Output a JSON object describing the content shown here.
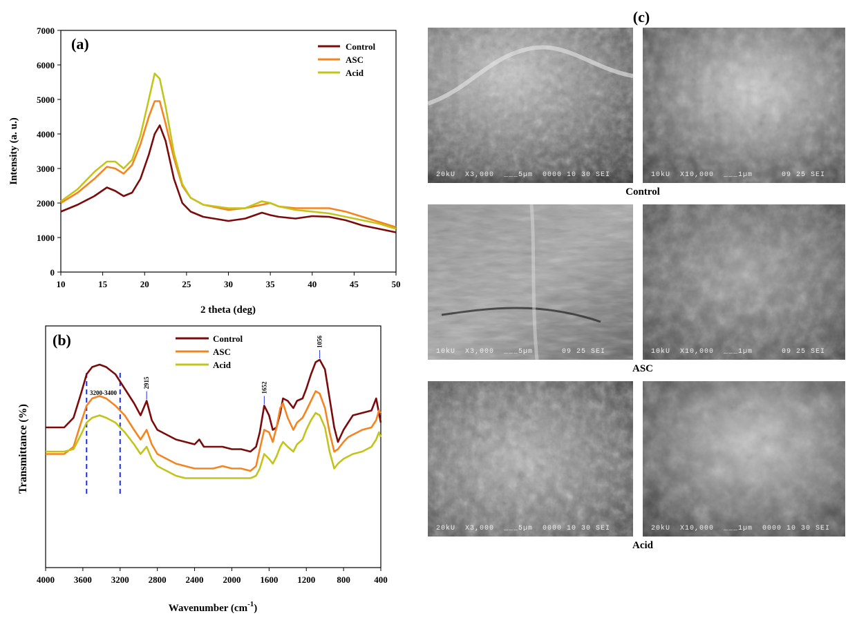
{
  "panel_labels": {
    "a": "(a)",
    "b": "(b)",
    "c": "(c)"
  },
  "colors": {
    "control": "#7b0a0a",
    "asc": "#f5841f",
    "acid": "#c3c41a",
    "marker": "#1f2ee6"
  },
  "chart_data": [
    {
      "type": "line",
      "panel": "(a)",
      "title": "",
      "xlabel": "2 theta (deg)",
      "ylabel": "Intensity (a. u.)",
      "xlim": [
        10,
        50
      ],
      "ylim": [
        0,
        7000
      ],
      "xticks": [
        "10",
        "15",
        "20",
        "25",
        "30",
        "35",
        "40",
        "45",
        "50"
      ],
      "yticks": [
        "0",
        "1000",
        "2000",
        "3000",
        "4000",
        "5000",
        "6000",
        "7000"
      ],
      "legend": [
        "Control",
        "ASC",
        "Acid"
      ],
      "legend_position": "top-right",
      "series": [
        {
          "name": "Control",
          "color": "#7b0a0a",
          "x": [
            10,
            12,
            14,
            15.5,
            16.5,
            17.5,
            18.5,
            19.5,
            20.5,
            21.2,
            21.8,
            22.5,
            23.5,
            24.5,
            25.5,
            27,
            30,
            32,
            34,
            35,
            36,
            38,
            40,
            42,
            44,
            46,
            48,
            50
          ],
          "y": [
            1750,
            1950,
            2200,
            2450,
            2350,
            2200,
            2300,
            2700,
            3400,
            4000,
            4250,
            3800,
            2700,
            2000,
            1750,
            1600,
            1480,
            1550,
            1720,
            1650,
            1600,
            1550,
            1620,
            1600,
            1500,
            1350,
            1250,
            1150
          ]
        },
        {
          "name": "ASC",
          "color": "#f5841f",
          "x": [
            10,
            12,
            14,
            15.5,
            16.5,
            17.5,
            18.5,
            19.5,
            20.5,
            21.2,
            21.8,
            22.5,
            23.5,
            24.5,
            25.5,
            27,
            30,
            32,
            34,
            35,
            36,
            38,
            40,
            42,
            44,
            46,
            48,
            50
          ],
          "y": [
            2000,
            2300,
            2700,
            3050,
            3000,
            2850,
            3100,
            3700,
            4500,
            4950,
            4950,
            4300,
            3300,
            2500,
            2150,
            1950,
            1800,
            1850,
            1950,
            2000,
            1900,
            1850,
            1850,
            1850,
            1750,
            1600,
            1450,
            1300
          ]
        },
        {
          "name": "Acid",
          "color": "#c3c41a",
          "x": [
            10,
            12,
            14,
            15.5,
            16.5,
            17.5,
            18.5,
            19.5,
            20.5,
            21.2,
            21.8,
            22.5,
            23.5,
            24.5,
            25.5,
            27,
            30,
            32,
            34,
            35,
            36,
            38,
            40,
            42,
            44,
            46,
            48,
            50
          ],
          "y": [
            2050,
            2400,
            2900,
            3200,
            3200,
            3000,
            3250,
            3950,
            5000,
            5750,
            5600,
            4800,
            3450,
            2550,
            2150,
            1950,
            1850,
            1850,
            2050,
            2000,
            1900,
            1800,
            1750,
            1700,
            1600,
            1500,
            1400,
            1250
          ]
        }
      ]
    },
    {
      "type": "line",
      "panel": "(b)",
      "title": "",
      "xlabel": "Wavenumber (cm",
      "xlabel_sup": "-1",
      "xlabel_end": ")",
      "ylabel": "Transmittance (%)",
      "xlim": [
        4000,
        400
      ],
      "ylim": [
        0,
        100
      ],
      "xticks": [
        "4000",
        "3600",
        "3200",
        "2800",
        "2400",
        "2000",
        "1600",
        "1200",
        "800",
        "400"
      ],
      "legend": [
        "Control",
        "ASC",
        "Acid"
      ],
      "legend_position": "top-center",
      "annotations": [
        {
          "text": "3200-3400",
          "x": 3380
        },
        {
          "text": "2915",
          "x": 2915
        },
        {
          "text": "1652",
          "x": 1652
        },
        {
          "text": "1056",
          "x": 1056
        }
      ],
      "dashed_lines_x": [
        3560,
        3200
      ],
      "series": [
        {
          "name": "Control",
          "color": "#7b0a0a",
          "x": [
            4000,
            3800,
            3700,
            3620,
            3560,
            3500,
            3420,
            3350,
            3250,
            3150,
            3050,
            2980,
            2915,
            2860,
            2800,
            2700,
            2600,
            2500,
            2400,
            2350,
            2300,
            2200,
            2100,
            2000,
            1900,
            1800,
            1740,
            1700,
            1652,
            1600,
            1560,
            1520,
            1480,
            1450,
            1400,
            1340,
            1300,
            1240,
            1200,
            1150,
            1100,
            1056,
            1000,
            950,
            900,
            860,
            800,
            750,
            700,
            600,
            500,
            450,
            420,
            400
          ],
          "y": [
            58,
            58,
            62,
            72,
            80,
            83,
            84,
            83,
            80,
            74,
            68,
            63,
            69,
            61,
            57,
            55,
            53,
            52,
            51,
            53,
            50,
            50,
            50,
            49,
            49,
            48,
            50,
            56,
            67,
            63,
            57,
            58,
            64,
            70,
            69,
            66,
            69,
            70,
            74,
            80,
            85,
            86,
            82,
            70,
            58,
            52,
            57,
            60,
            63,
            64,
            65,
            70,
            64,
            60
          ]
        },
        {
          "name": "ASC",
          "color": "#f5841f",
          "x": [
            4000,
            3800,
            3700,
            3620,
            3560,
            3500,
            3420,
            3350,
            3250,
            3150,
            3050,
            2980,
            2915,
            2860,
            2800,
            2700,
            2600,
            2500,
            2400,
            2300,
            2200,
            2100,
            2000,
            1900,
            1800,
            1740,
            1700,
            1652,
            1600,
            1560,
            1520,
            1480,
            1450,
            1400,
            1340,
            1300,
            1240,
            1200,
            1150,
            1100,
            1056,
            1000,
            950,
            900,
            860,
            800,
            750,
            700,
            600,
            500,
            450,
            420,
            400
          ],
          "y": [
            47,
            47,
            50,
            60,
            67,
            70,
            71,
            70,
            67,
            63,
            57,
            53,
            57,
            51,
            47,
            45,
            43,
            42,
            41,
            41,
            41,
            42,
            41,
            41,
            40,
            42,
            49,
            57,
            56,
            52,
            58,
            66,
            68,
            62,
            57,
            60,
            62,
            65,
            69,
            73,
            72,
            66,
            56,
            48,
            49,
            52,
            54,
            55,
            57,
            58,
            61,
            65,
            64
          ]
        },
        {
          "name": "Acid",
          "color": "#c3c41a",
          "x": [
            4000,
            3800,
            3700,
            3620,
            3560,
            3500,
            3420,
            3350,
            3250,
            3150,
            3050,
            2980,
            2915,
            2860,
            2800,
            2700,
            2600,
            2500,
            2400,
            2300,
            2200,
            2100,
            2000,
            1900,
            1800,
            1740,
            1700,
            1652,
            1600,
            1560,
            1520,
            1480,
            1450,
            1400,
            1340,
            1300,
            1240,
            1200,
            1150,
            1100,
            1056,
            1000,
            950,
            900,
            860,
            800,
            750,
            700,
            600,
            500,
            450,
            420,
            400
          ],
          "y": [
            48,
            48,
            49,
            55,
            60,
            62,
            63,
            62,
            60,
            56,
            51,
            47,
            50,
            45,
            42,
            40,
            38,
            37,
            37,
            37,
            37,
            37,
            37,
            37,
            37,
            38,
            41,
            47,
            45,
            43,
            46,
            50,
            52,
            50,
            48,
            51,
            53,
            57,
            61,
            64,
            63,
            58,
            48,
            41,
            43,
            45,
            46,
            47,
            48,
            50,
            53,
            56,
            54
          ]
        }
      ]
    }
  ],
  "sem": {
    "rows": [
      {
        "label": "Control",
        "left_caption": "20kU  X3,000  ___5µm  0000 10 30 SEI",
        "right_caption": "10kU  X10,000  ___1µm      09 25 SEI"
      },
      {
        "label": "ASC",
        "left_caption": "10kU  X3,000  ___5µm      09 25 SEI",
        "right_caption": "10kU  X10,000  ___1µm      09 25 SEI"
      },
      {
        "label": "Acid",
        "left_caption": "20kU  X3,000  ___5µm  0000 10 30 SEI",
        "right_caption": "20kU  X10,000  ___1µm  0000 10 30 SEI"
      }
    ]
  }
}
